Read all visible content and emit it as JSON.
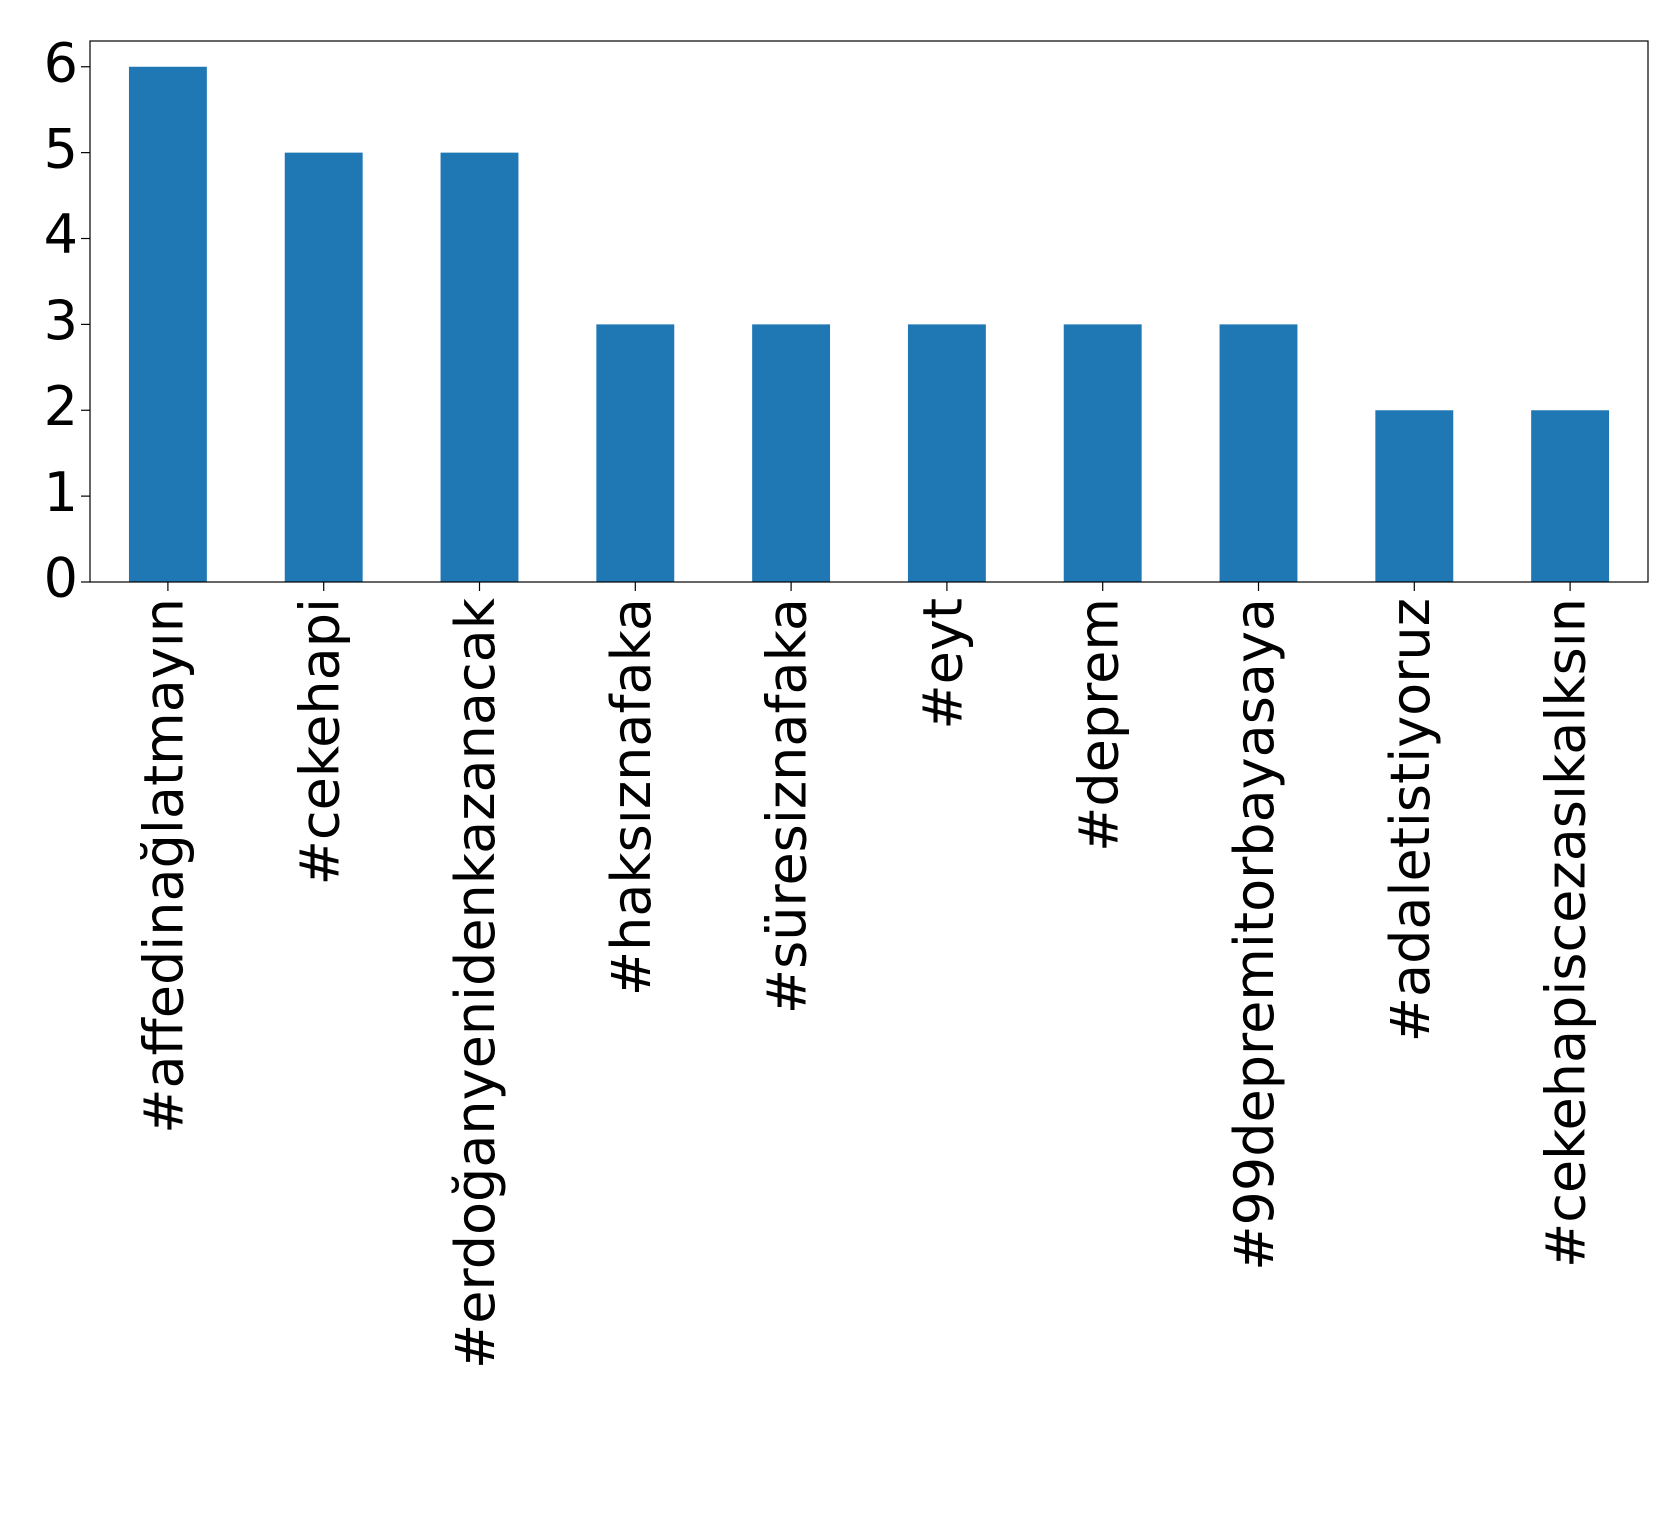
{
  "chart_data": {
    "type": "bar",
    "categories": [
      "#affedinağlatmayın",
      "#cekehapi",
      "#erdoğanyenidenkazanacak",
      "#haksıznafaka",
      "#süresiznafaka",
      "#eyt",
      "#deprem",
      "#99depremitorbayasaya",
      "#adaletistiyoruz",
      "#cekehapiscezasıkalksın"
    ],
    "values": [
      6,
      5,
      5,
      3,
      3,
      3,
      3,
      3,
      2,
      2
    ],
    "color": "#1f77b4",
    "ylim": [
      0,
      6.3
    ],
    "yticks": [
      0,
      1,
      2,
      3,
      4,
      5,
      6
    ],
    "grid": false
  }
}
